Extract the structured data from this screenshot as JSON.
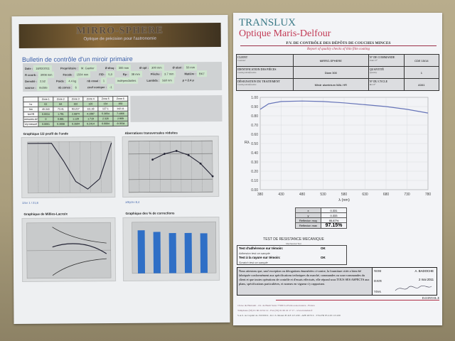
{
  "left_sheet": {
    "banner_title": "MIRRO-SPHERE",
    "banner_subtitle": "Optique de précision pour l'astronomie",
    "title": "Bulletin de contrôle d'un miroir primaire",
    "info": [
      {
        "label": "Date :",
        "value": "18/02/2011"
      },
      {
        "label": "Propriétaire :",
        "value": "M. Gautier"
      },
      {
        "label": "Ø disq :",
        "value": "300 mm"
      },
      {
        "label": "Ø opt :",
        "value": "300 mm"
      },
      {
        "label": "Ø obst :",
        "value": "50 mm"
      },
      {
        "label": "R courb :",
        "value": "3008 mm"
      },
      {
        "label": "Focale :",
        "value": "1504 mm"
      },
      {
        "label": "F/D :",
        "value": "5,0"
      },
      {
        "label": "Ep :",
        "value": "38 mm"
      },
      {
        "label": "Flèche :",
        "value": "3.7 mm"
      },
      {
        "label": "Matière :",
        "value": "BK7"
      },
      {
        "label": "Densité :",
        "value": "2,52"
      },
      {
        "label": "Poids :",
        "value": "4.4 kg"
      },
      {
        "label": "nb essai :",
        "value": "1"
      },
      {
        "label": "",
        "value": "indépendantes"
      },
      {
        "label": "Lambda :",
        "value": "560 nm"
      },
      {
        "label": "ρ = 2.4 μ",
        "value": ""
      },
      {
        "label": "source :",
        "value": "mobile"
      },
      {
        "label": "nb zones :",
        "value": "6"
      },
      {
        "label": "coef conique :",
        "value": "-1"
      }
    ],
    "zone_table": {
      "headers": [
        "",
        "Zone 1",
        "Zone 2",
        "Zone 3",
        "Zone 4",
        "Zone 5",
        "Zone 6"
      ],
      "rows": [
        [
          "hx",
          "62",
          "84",
          "102",
          "120",
          "134",
          "150"
        ],
        [
          "hm",
          "45.343",
          "73.41",
          "93.217",
          "111.18",
          "127.1",
          "142.11"
        ],
        [
          "hm²/R",
          "0.6634",
          "1.791",
          "2.6874",
          "4.1087",
          "5.3654",
          "7.1066"
        ],
        [
          "mesures dr/",
          "0",
          "0.881",
          "1.129",
          "1.719",
          "2.326",
          "2.969"
        ],
        [
          "λ/y mesuré",
          "0.0661",
          "0.3008",
          "0.3504",
          "0.2414",
          "0.0004",
          "-0.3534"
        ]
      ]
    },
    "chart1_title": "Graphique 1/2 profil de l'onde",
    "chart1_caption": "Σ/λ= 1 / 21,8",
    "chart2_title": "Aberrations transversales réduites",
    "chart2_caption": "λ/Ey/λ= 8,4",
    "chart3_title": "Graphique de Millies-Lacroix",
    "chart4_title": "Graphique des % de corrections"
  },
  "right_sheet": {
    "brand": "TRANSLUX",
    "company": "Optique Maris-Delfour",
    "pv_title": "P.V. DE CONTRÔLE DES DÉPÔTS DE COUCHES MINCES",
    "pv_subtitle": "Report of quality checks of thin film coating",
    "id_table": [
      {
        "label": "CLIENT",
        "sub": "Customer",
        "value": "MIRRO-SPHERE",
        "label2": "N° DE COMMANDE",
        "sub2": "Order N°",
        "value2": "CDE 15/14"
      },
      {
        "label": "IDENTIFICATION DES PIÈCES",
        "sub": "Coating identification",
        "value": "Diam 300",
        "label2": "QUANTITÉ",
        "sub2": "Quantity",
        "value2": "1"
      },
      {
        "label": "DÉSIGNATION DU TRAITEMENT",
        "sub": "Coating identification",
        "value": "Miroir aluminium MAL HR",
        "label2": "N° DU CYCLE",
        "sub2": "Run N°",
        "value2": "A341"
      }
    ],
    "results": [
      {
        "label": "x",
        "value": "0.331"
      },
      {
        "label": "y",
        "value": "0.333"
      },
      {
        "label": "Reflexion moy",
        "value": "95.87%"
      },
      {
        "label": "Reflexion max",
        "value": "97.15%"
      }
    ],
    "mech_title": "TEST DE RESISTANCE MECANIQUE",
    "mech_sub": "Mechanical Test",
    "adhesion_label": "Test d'adhérence sur témoin:",
    "adhesion_sub": "Adhesion test on sample",
    "adhesion_result": "OK",
    "scratch_label": "Test à la rayure sur témoin:",
    "scratch_sub": "Scratch test on sample",
    "scratch_result": "OK",
    "agreement_text": "Nous attestons que, sauf exception ou dérogations énumérées ci-contre, la fourniture citée a bien été fabriquée conformément aux spécifications techniques du marché, commandes ou sous-commandes du client et que toutes opérations de contrôle et d'essais effectués, elle répond sous TOUS SES ASPECTS aux plans, spécifications particulières, et normes en vigueur s'y rapportant.",
    "nom_label": "NOM",
    "nom_value": "A. BADOCHE",
    "date_label": "DATE",
    "date_value": "2 mai 2011",
    "visa_label": "VISA",
    "controle_label": "D.CONT.OL.E",
    "footer": [
      "16 rue du Harnault - Z.I. de Bault Sorte 77260 La Ferté-sous-Jouarre - France",
      "Téléphone (33) 01 60 22 04 12 - Fax (33) 01 60 22 17 17 - www.translux.fr",
      "S.A.S. au Capital de 150 000 € - R.C.S. Meaux B 418 113 430 - APE 2670 Z - TVA FR 85 418 113 430"
    ]
  },
  "chart_data": [
    {
      "type": "line",
      "title": "",
      "xlabel": "λ (nm)",
      "ylabel": "Rλ",
      "xlim": [
        380,
        780
      ],
      "ylim": [
        0,
        1
      ],
      "xticks": [
        380,
        430,
        480,
        530,
        580,
        630,
        680,
        730,
        780
      ],
      "yticks": [
        "0.00",
        "0.10",
        "0.20",
        "0.30",
        "0.40",
        "0.50",
        "0.60",
        "0.70",
        "0.80",
        "0.90",
        "1.00"
      ],
      "x": [
        380,
        400,
        430,
        480,
        530,
        580,
        630,
        680,
        730,
        780
      ],
      "y": [
        0.87,
        0.93,
        0.955,
        0.96,
        0.955,
        0.94,
        0.92,
        0.9,
        0.87,
        0.83
      ],
      "color": "#6674b8",
      "grid": true
    },
    {
      "type": "line",
      "title": "Graphique 1/2 profil de l'onde",
      "x": [
        0,
        1,
        2,
        3,
        4,
        5,
        6,
        7
      ],
      "y": [
        0,
        0,
        0,
        -0.35,
        -0.75,
        -0.9,
        -0.7,
        0
      ],
      "color": "#223"
    },
    {
      "type": "line",
      "title": "Aberrations transversales réduites",
      "x": [
        2,
        3,
        4,
        5,
        6,
        7
      ],
      "y": [
        0.25,
        0.45,
        0.55,
        0.4,
        0.1,
        -0.35
      ],
      "color": "#223"
    },
    {
      "type": "bar",
      "title": "Graphique des % de corrections",
      "values": [
        101,
        97,
        94,
        94,
        93
      ],
      "ylim": [
        0,
        120
      ],
      "color": "#2f6fc6"
    }
  ]
}
